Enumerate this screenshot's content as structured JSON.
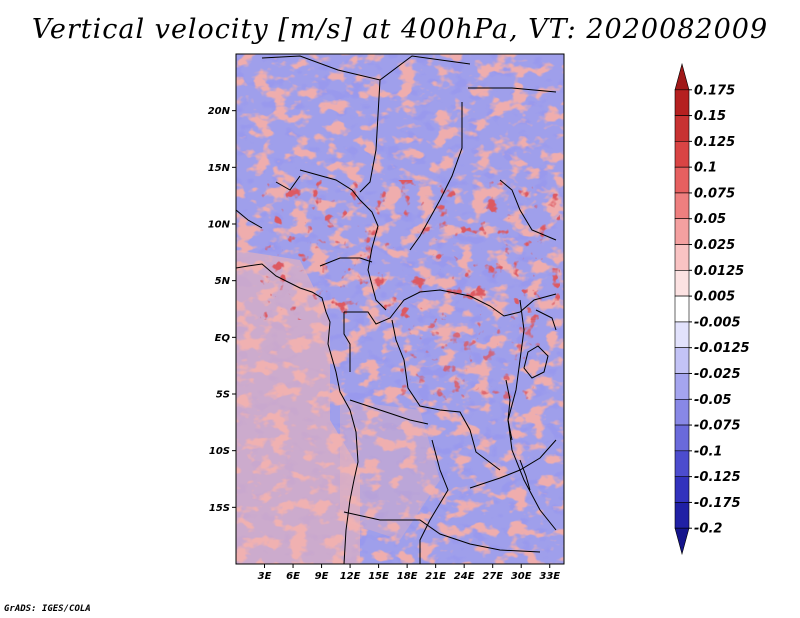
{
  "title": "Vertical velocity [m/s] at 400hPa, VT: 2020082009",
  "credit": "GrADS: IGES/COLA",
  "map": {
    "variable": "Vertical velocity",
    "units": "m/s",
    "level": "400hPa",
    "valid_time": "2020082009",
    "lat_labels": [
      "20N",
      "15N",
      "10N",
      "5N",
      "EQ",
      "5S",
      "10S",
      "15S"
    ],
    "lon_labels": [
      "3E",
      "6E",
      "9E",
      "12E",
      "15E",
      "18E",
      "21E",
      "24E",
      "27E",
      "30E",
      "33E"
    ],
    "lat_values": [
      20,
      15,
      10,
      5,
      0,
      -5,
      -10,
      -15
    ],
    "lon_values": [
      3,
      6,
      9,
      12,
      15,
      18,
      21,
      24,
      27,
      30,
      33
    ],
    "lon_range": [
      0,
      34.5
    ],
    "lat_range": [
      -20,
      25
    ]
  },
  "colorbar": {
    "labels": [
      "0.175",
      "0.15",
      "0.125",
      "0.1",
      "0.075",
      "0.05",
      "0.025",
      "0.0125",
      "0.005",
      "-0.005",
      "-0.0125",
      "-0.025",
      "-0.05",
      "-0.075",
      "-0.1",
      "-0.125",
      "-0.175",
      "-0.2"
    ],
    "colors": [
      "#a01818",
      "#b52020",
      "#c83232",
      "#d94444",
      "#e66060",
      "#ee7f7f",
      "#f4a0a0",
      "#f9c3c3",
      "#fce2e2",
      "#ffffff",
      "#e2e2fc",
      "#c3c3f6",
      "#a5a5ef",
      "#8888e6",
      "#6a6adb",
      "#4c4cce",
      "#3232bd",
      "#2020a5",
      "#15158c"
    ]
  }
}
